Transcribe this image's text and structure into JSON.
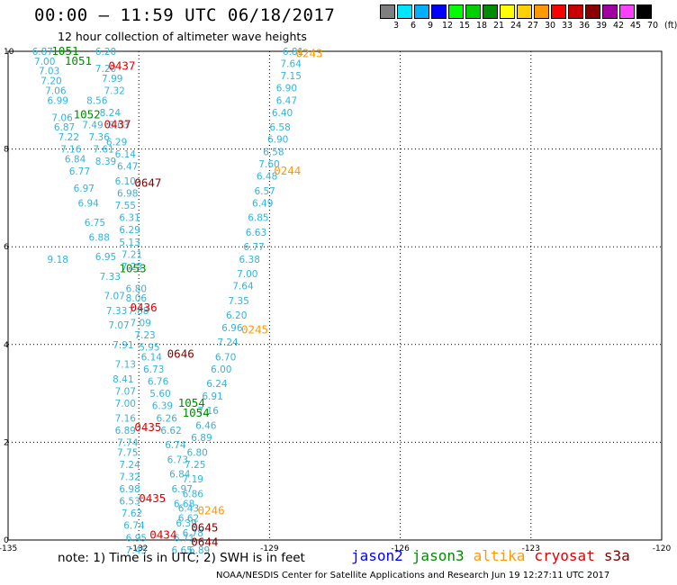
{
  "header": {
    "title": "00:00 – 11:59 UTC 06/18/2017",
    "subtitle": "12 hour collection of altimeter wave heights"
  },
  "colorbar": {
    "unit": "(ft)",
    "labels": [
      "3",
      "6",
      "9",
      "12",
      "15",
      "18",
      "21",
      "24",
      "27",
      "30",
      "33",
      "36",
      "39",
      "42",
      "45",
      "70"
    ],
    "colors": [
      "#7f7f7f",
      "#00e5ff",
      "#00b0ff",
      "#0000ff",
      "#00ff00",
      "#00d000",
      "#008c00",
      "#ffff00",
      "#ffd000",
      "#ff9900",
      "#ff0000",
      "#c80000",
      "#8c0000",
      "#a000a0",
      "#ff40ff",
      "#000000"
    ]
  },
  "axes": {
    "x_ticks": [
      "-135",
      "-132",
      "-129",
      "-126",
      "-123",
      "-120"
    ],
    "y_ticks": [
      "0",
      "2",
      "4",
      "6",
      "8",
      "10"
    ],
    "x_range": [
      -135,
      -120
    ],
    "y_range": [
      0,
      10
    ]
  },
  "passes": [
    {
      "label": "1051",
      "satellite": "jason3",
      "color": "#008c00",
      "lon": -134.0,
      "lat": 10.0
    },
    {
      "label": "1051",
      "satellite": "jason3",
      "color": "#008c00",
      "lon": -133.7,
      "lat": 9.8
    },
    {
      "label": "0437",
      "satellite": "cryosat",
      "color": "#e00000",
      "lon": -132.7,
      "lat": 9.7
    },
    {
      "label": "1052",
      "satellite": "jason3",
      "color": "#008c00",
      "lon": -133.5,
      "lat": 8.7
    },
    {
      "label": "0437",
      "satellite": "cryosat",
      "color": "#e00000",
      "lon": -132.8,
      "lat": 8.5
    },
    {
      "label": "0647",
      "satellite": "s3a",
      "color": "#800000",
      "lon": -132.1,
      "lat": 7.3
    },
    {
      "label": "1053",
      "satellite": "jason3",
      "color": "#008c00",
      "lon": -132.45,
      "lat": 5.55
    },
    {
      "label": "0436",
      "satellite": "cryosat",
      "color": "#e00000",
      "lon": -132.2,
      "lat": 4.75
    },
    {
      "label": "0646",
      "satellite": "s3a",
      "color": "#800000",
      "lon": -131.35,
      "lat": 3.8
    },
    {
      "label": "1054",
      "satellite": "jason3",
      "color": "#008c00",
      "lon": -131.1,
      "lat": 2.8
    },
    {
      "label": "1054",
      "satellite": "jason3",
      "color": "#008c00",
      "lon": -131.0,
      "lat": 2.6
    },
    {
      "label": "0435",
      "satellite": "cryosat",
      "color": "#e00000",
      "lon": -132.1,
      "lat": 2.3
    },
    {
      "label": "0435",
      "satellite": "cryosat",
      "color": "#e00000",
      "lon": -132.0,
      "lat": 0.85
    },
    {
      "label": "0434",
      "satellite": "cryosat",
      "color": "#e00000",
      "lon": -131.75,
      "lat": 0.1
    },
    {
      "label": "0645",
      "satellite": "s3a",
      "color": "#800000",
      "lon": -130.8,
      "lat": 0.25
    },
    {
      "label": "0644",
      "satellite": "s3a",
      "color": "#800000",
      "lon": -130.8,
      "lat": -0.05
    },
    {
      "label": "0243",
      "satellite": "altika",
      "color": "#ff9900",
      "lon": -128.4,
      "lat": 9.95
    },
    {
      "label": "0244",
      "satellite": "altika",
      "color": "#ff9900",
      "lon": -128.9,
      "lat": 7.55
    },
    {
      "label": "0245",
      "satellite": "altika",
      "color": "#ff9900",
      "lon": -129.65,
      "lat": 4.3
    },
    {
      "label": "0246",
      "satellite": "altika",
      "color": "#ff9900",
      "lon": -130.65,
      "lat": 0.6
    }
  ],
  "swh_values": [
    {
      "lon": -134.45,
      "lat": 10.0,
      "value": "6.87"
    },
    {
      "lon": -134.4,
      "lat": 9.8,
      "value": "7.00"
    },
    {
      "lon": -134.3,
      "lat": 9.6,
      "value": "7.03"
    },
    {
      "lon": -134.25,
      "lat": 9.4,
      "value": "7.20"
    },
    {
      "lon": -134.15,
      "lat": 9.2,
      "value": "7.06"
    },
    {
      "lon": -134.1,
      "lat": 9.0,
      "value": "6.99"
    },
    {
      "lon": -134.0,
      "lat": 8.65,
      "value": "7.06"
    },
    {
      "lon": -133.95,
      "lat": 8.45,
      "value": "6.87"
    },
    {
      "lon": -133.85,
      "lat": 8.25,
      "value": "7.22"
    },
    {
      "lon": -133.8,
      "lat": 8.0,
      "value": "7.16"
    },
    {
      "lon": -133.7,
      "lat": 7.8,
      "value": "6.84"
    },
    {
      "lon": -133.6,
      "lat": 7.55,
      "value": "6.77"
    },
    {
      "lon": -133.5,
      "lat": 7.2,
      "value": "6.97"
    },
    {
      "lon": -133.4,
      "lat": 6.9,
      "value": "6.94"
    },
    {
      "lon": -133.25,
      "lat": 6.5,
      "value": "6.75"
    },
    {
      "lon": -133.15,
      "lat": 6.2,
      "value": "6.88"
    },
    {
      "lon": -133.0,
      "lat": 5.8,
      "value": "6.95"
    },
    {
      "lon": -132.9,
      "lat": 5.4,
      "value": "7.33"
    },
    {
      "lon": -132.8,
      "lat": 5.0,
      "value": "7.07"
    },
    {
      "lon": -132.75,
      "lat": 4.7,
      "value": "7.33"
    },
    {
      "lon": -132.7,
      "lat": 4.4,
      "value": "7.07"
    },
    {
      "lon": -132.6,
      "lat": 4.0,
      "value": "7.91"
    },
    {
      "lon": -132.55,
      "lat": 3.6,
      "value": "7.13"
    },
    {
      "lon": -132.6,
      "lat": 3.3,
      "value": "8.41"
    },
    {
      "lon": -132.55,
      "lat": 3.05,
      "value": "7.07"
    },
    {
      "lon": -132.55,
      "lat": 2.8,
      "value": "7.00"
    },
    {
      "lon": -132.55,
      "lat": 2.5,
      "value": "7.16"
    },
    {
      "lon": -132.55,
      "lat": 2.25,
      "value": "6.89"
    },
    {
      "lon": -132.5,
      "lat": 2.0,
      "value": "7.74"
    },
    {
      "lon": -132.5,
      "lat": 1.8,
      "value": "7.75"
    },
    {
      "lon": -132.45,
      "lat": 1.55,
      "value": "7.24"
    },
    {
      "lon": -132.45,
      "lat": 1.3,
      "value": "7.32"
    },
    {
      "lon": -132.45,
      "lat": 1.05,
      "value": "6.98"
    },
    {
      "lon": -132.45,
      "lat": 0.8,
      "value": "6.53"
    },
    {
      "lon": -132.4,
      "lat": 0.55,
      "value": "7.62"
    },
    {
      "lon": -132.35,
      "lat": 0.3,
      "value": "6.74"
    },
    {
      "lon": -132.3,
      "lat": 0.05,
      "value": "6.95"
    },
    {
      "lon": -132.3,
      "lat": -0.2,
      "value": "7.45"
    },
    {
      "lon": -133.0,
      "lat": 10.0,
      "value": "6.20"
    },
    {
      "lon": -133.0,
      "lat": 9.65,
      "value": "7.20"
    },
    {
      "lon": -132.85,
      "lat": 9.45,
      "value": "7.99"
    },
    {
      "lon": -132.8,
      "lat": 9.2,
      "value": "7.32"
    },
    {
      "lon": -133.2,
      "lat": 9.0,
      "value": "8.56"
    },
    {
      "lon": -132.9,
      "lat": 8.75,
      "value": "8.24"
    },
    {
      "lon": -132.7,
      "lat": 8.5,
      "value": "8.03"
    },
    {
      "lon": -133.3,
      "lat": 8.5,
      "value": "7.49"
    },
    {
      "lon": -133.15,
      "lat": 8.25,
      "value": "7.36"
    },
    {
      "lon": -132.75,
      "lat": 8.15,
      "value": "6.29"
    },
    {
      "lon": -133.05,
      "lat": 8.0,
      "value": "7.61"
    },
    {
      "lon": -132.55,
      "lat": 7.9,
      "value": "6.14"
    },
    {
      "lon": -133.0,
      "lat": 7.75,
      "value": "8.39"
    },
    {
      "lon": -132.5,
      "lat": 7.65,
      "value": "6.47"
    },
    {
      "lon": -132.55,
      "lat": 7.35,
      "value": "6.10"
    },
    {
      "lon": -132.5,
      "lat": 7.1,
      "value": "6.98"
    },
    {
      "lon": -132.55,
      "lat": 6.85,
      "value": "7.55"
    },
    {
      "lon": -132.45,
      "lat": 6.6,
      "value": "6.31"
    },
    {
      "lon": -132.45,
      "lat": 6.35,
      "value": "6.29"
    },
    {
      "lon": -132.45,
      "lat": 6.1,
      "value": "5.13"
    },
    {
      "lon": -132.4,
      "lat": 5.85,
      "value": "7.21"
    },
    {
      "lon": -132.4,
      "lat": 5.6,
      "value": "7.25"
    },
    {
      "lon": -132.3,
      "lat": 5.15,
      "value": "6.80"
    },
    {
      "lon": -132.3,
      "lat": 4.95,
      "value": "8.06"
    },
    {
      "lon": -132.25,
      "lat": 4.7,
      "value": "7.88"
    },
    {
      "lon": -132.2,
      "lat": 4.45,
      "value": "7.09"
    },
    {
      "lon": -132.1,
      "lat": 4.2,
      "value": "7.23"
    },
    {
      "lon": -132.0,
      "lat": 3.95,
      "value": "5.95"
    },
    {
      "lon": -131.95,
      "lat": 3.75,
      "value": "6.14"
    },
    {
      "lon": -131.9,
      "lat": 3.5,
      "value": "6.73"
    },
    {
      "lon": -131.8,
      "lat": 3.25,
      "value": "6.76"
    },
    {
      "lon": -131.75,
      "lat": 3.0,
      "value": "5.60"
    },
    {
      "lon": -131.7,
      "lat": 2.75,
      "value": "6.39"
    },
    {
      "lon": -131.6,
      "lat": 2.5,
      "value": "6.26"
    },
    {
      "lon": -131.5,
      "lat": 2.25,
      "value": "6.62"
    },
    {
      "lon": -131.4,
      "lat": 1.95,
      "value": "6.74"
    },
    {
      "lon": -131.35,
      "lat": 1.65,
      "value": "6.73"
    },
    {
      "lon": -131.3,
      "lat": 1.35,
      "value": "6.84"
    },
    {
      "lon": -131.25,
      "lat": 1.05,
      "value": "6.97"
    },
    {
      "lon": -131.2,
      "lat": 0.75,
      "value": "6.68"
    },
    {
      "lon": -131.1,
      "lat": 0.45,
      "value": "6.62"
    },
    {
      "lon": -131.0,
      "lat": 0.15,
      "value": "6.78"
    },
    {
      "lon": -130.85,
      "lat": -0.2,
      "value": "6.89"
    },
    {
      "lon": -134.1,
      "lat": 5.75,
      "value": "9.18"
    },
    {
      "lon": -128.7,
      "lat": 10.0,
      "value": "6.81"
    },
    {
      "lon": -128.75,
      "lat": 9.75,
      "value": "7.64"
    },
    {
      "lon": -128.75,
      "lat": 9.5,
      "value": "7.15"
    },
    {
      "lon": -128.85,
      "lat": 9.25,
      "value": "6.90"
    },
    {
      "lon": -128.85,
      "lat": 9.0,
      "value": "6.47"
    },
    {
      "lon": -128.95,
      "lat": 8.75,
      "value": "6.40"
    },
    {
      "lon": -129.0,
      "lat": 8.45,
      "value": "6.58"
    },
    {
      "lon": -129.05,
      "lat": 8.2,
      "value": "6.90"
    },
    {
      "lon": -129.15,
      "lat": 7.95,
      "value": "6.58"
    },
    {
      "lon": -129.25,
      "lat": 7.7,
      "value": "7.60"
    },
    {
      "lon": -129.3,
      "lat": 7.45,
      "value": "6.48"
    },
    {
      "lon": -129.35,
      "lat": 7.15,
      "value": "6.57"
    },
    {
      "lon": -129.4,
      "lat": 6.9,
      "value": "6.49"
    },
    {
      "lon": -129.5,
      "lat": 6.6,
      "value": "6.85"
    },
    {
      "lon": -129.55,
      "lat": 6.3,
      "value": "6.63"
    },
    {
      "lon": -129.6,
      "lat": 6.0,
      "value": "6.77"
    },
    {
      "lon": -129.7,
      "lat": 5.75,
      "value": "6.38"
    },
    {
      "lon": -129.75,
      "lat": 5.45,
      "value": "7.00"
    },
    {
      "lon": -129.85,
      "lat": 5.2,
      "value": "7.64"
    },
    {
      "lon": -129.95,
      "lat": 4.9,
      "value": "7.35"
    },
    {
      "lon": -130.0,
      "lat": 4.6,
      "value": "6.20"
    },
    {
      "lon": -130.1,
      "lat": 4.35,
      "value": "6.96"
    },
    {
      "lon": -130.2,
      "lat": 4.05,
      "value": "7.24"
    },
    {
      "lon": -130.25,
      "lat": 3.75,
      "value": "6.70"
    },
    {
      "lon": -130.35,
      "lat": 3.5,
      "value": "6.00"
    },
    {
      "lon": -130.45,
      "lat": 3.2,
      "value": "6.24"
    },
    {
      "lon": -130.55,
      "lat": 2.95,
      "value": "6.91"
    },
    {
      "lon": -130.65,
      "lat": 2.65,
      "value": "7.16"
    },
    {
      "lon": -130.7,
      "lat": 2.35,
      "value": "6.46"
    },
    {
      "lon": -130.8,
      "lat": 2.1,
      "value": "6.89"
    },
    {
      "lon": -130.9,
      "lat": 1.8,
      "value": "6.80"
    },
    {
      "lon": -130.95,
      "lat": 1.55,
      "value": "7.25"
    },
    {
      "lon": -131.0,
      "lat": 1.25,
      "value": "7.19"
    },
    {
      "lon": -131.0,
      "lat": 0.95,
      "value": "6.86"
    },
    {
      "lon": -131.1,
      "lat": 0.65,
      "value": "6.43"
    },
    {
      "lon": -131.15,
      "lat": 0.35,
      "value": "6.39"
    },
    {
      "lon": -131.2,
      "lat": 0.05,
      "value": "6.71"
    },
    {
      "lon": -131.25,
      "lat": -0.2,
      "value": "6.65"
    }
  ],
  "footer": {
    "note": "note:  1) Time is in UTC;  2) SWH is in feet",
    "credit": "NOAA/NESDIS Center for Satellite Applications and Research    Jun 19 12:27:11 UTC 2017"
  },
  "legend": [
    {
      "name": "jason2",
      "color": "#0000ff"
    },
    {
      "name": "jason3",
      "color": "#008c00"
    },
    {
      "name": "altika",
      "color": "#ff9900"
    },
    {
      "name": "cryosat",
      "color": "#e00000"
    },
    {
      "name": "s3a",
      "color": "#800000"
    }
  ]
}
